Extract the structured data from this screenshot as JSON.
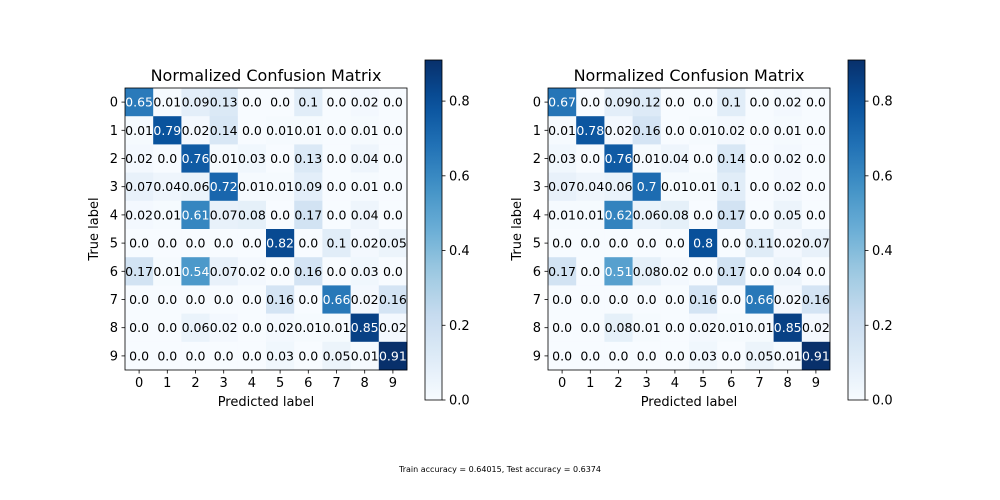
{
  "caption": "Train accuracy = 0.64015, Test accuracy = 0.6374",
  "colormap": {
    "name": "Blues",
    "low": "#f7fbff",
    "high": "#08306b"
  },
  "chart_data": [
    {
      "type": "heatmap",
      "title": "Normalized Confusion Matrix",
      "xlabel": "Predicted label",
      "ylabel": "True label",
      "x_ticks": [
        "0",
        "1",
        "2",
        "3",
        "4",
        "5",
        "6",
        "7",
        "8",
        "9"
      ],
      "y_ticks": [
        "0",
        "1",
        "2",
        "3",
        "4",
        "5",
        "6",
        "7",
        "8",
        "9"
      ],
      "cells": [
        [
          "0.65",
          "0.01",
          "0.09",
          "0.13",
          "0.0",
          "0.0",
          "0.1",
          "0.0",
          "0.02",
          "0.0"
        ],
        [
          "0.01",
          "0.79",
          "0.02",
          "0.14",
          "0.0",
          "0.01",
          "0.01",
          "0.0",
          "0.01",
          "0.0"
        ],
        [
          "0.02",
          "0.0",
          "0.76",
          "0.01",
          "0.03",
          "0.0",
          "0.13",
          "0.0",
          "0.04",
          "0.0"
        ],
        [
          "0.07",
          "0.04",
          "0.06",
          "0.72",
          "0.01",
          "0.01",
          "0.09",
          "0.0",
          "0.01",
          "0.0"
        ],
        [
          "0.02",
          "0.01",
          "0.61",
          "0.07",
          "0.08",
          "0.0",
          "0.17",
          "0.0",
          "0.04",
          "0.0"
        ],
        [
          "0.0",
          "0.0",
          "0.0",
          "0.0",
          "0.0",
          "0.82",
          "0.0",
          "0.1",
          "0.02",
          "0.05"
        ],
        [
          "0.17",
          "0.01",
          "0.54",
          "0.07",
          "0.02",
          "0.0",
          "0.16",
          "0.0",
          "0.03",
          "0.0"
        ],
        [
          "0.0",
          "0.0",
          "0.0",
          "0.0",
          "0.0",
          "0.16",
          "0.0",
          "0.66",
          "0.02",
          "0.16"
        ],
        [
          "0.0",
          "0.0",
          "0.06",
          "0.02",
          "0.0",
          "0.02",
          "0.01",
          "0.01",
          "0.85",
          "0.02"
        ],
        [
          "0.0",
          "0.0",
          "0.0",
          "0.0",
          "0.0",
          "0.03",
          "0.0",
          "0.05",
          "0.01",
          "0.91"
        ]
      ],
      "vmin": 0.0,
      "vmax": 0.91,
      "colorbar_ticks": [
        "0.0",
        "0.2",
        "0.4",
        "0.6",
        "0.8"
      ]
    },
    {
      "type": "heatmap",
      "title": "Normalized Confusion Matrix",
      "xlabel": "Predicted label",
      "ylabel": "True label",
      "x_ticks": [
        "0",
        "1",
        "2",
        "3",
        "4",
        "5",
        "6",
        "7",
        "8",
        "9"
      ],
      "y_ticks": [
        "0",
        "1",
        "2",
        "3",
        "4",
        "5",
        "6",
        "7",
        "8",
        "9"
      ],
      "cells": [
        [
          "0.67",
          "0.0",
          "0.09",
          "0.12",
          "0.0",
          "0.0",
          "0.1",
          "0.0",
          "0.02",
          "0.0"
        ],
        [
          "0.01",
          "0.78",
          "0.02",
          "0.16",
          "0.0",
          "0.01",
          "0.02",
          "0.0",
          "0.01",
          "0.0"
        ],
        [
          "0.03",
          "0.0",
          "0.76",
          "0.01",
          "0.04",
          "0.0",
          "0.14",
          "0.0",
          "0.02",
          "0.0"
        ],
        [
          "0.07",
          "0.04",
          "0.06",
          "0.7",
          "0.01",
          "0.01",
          "0.1",
          "0.0",
          "0.02",
          "0.0"
        ],
        [
          "0.01",
          "0.01",
          "0.62",
          "0.06",
          "0.08",
          "0.0",
          "0.17",
          "0.0",
          "0.05",
          "0.0"
        ],
        [
          "0.0",
          "0.0",
          "0.0",
          "0.0",
          "0.0",
          "0.8",
          "0.0",
          "0.11",
          "0.02",
          "0.07"
        ],
        [
          "0.17",
          "0.0",
          "0.51",
          "0.08",
          "0.02",
          "0.0",
          "0.17",
          "0.0",
          "0.04",
          "0.0"
        ],
        [
          "0.0",
          "0.0",
          "0.0",
          "0.0",
          "0.0",
          "0.16",
          "0.0",
          "0.66",
          "0.02",
          "0.16"
        ],
        [
          "0.0",
          "0.0",
          "0.08",
          "0.01",
          "0.0",
          "0.02",
          "0.01",
          "0.01",
          "0.85",
          "0.02"
        ],
        [
          "0.0",
          "0.0",
          "0.0",
          "0.0",
          "0.0",
          "0.03",
          "0.0",
          "0.05",
          "0.01",
          "0.91"
        ]
      ],
      "vmin": 0.0,
      "vmax": 0.91,
      "colorbar_ticks": [
        "0.0",
        "0.2",
        "0.4",
        "0.6",
        "0.8"
      ]
    }
  ]
}
